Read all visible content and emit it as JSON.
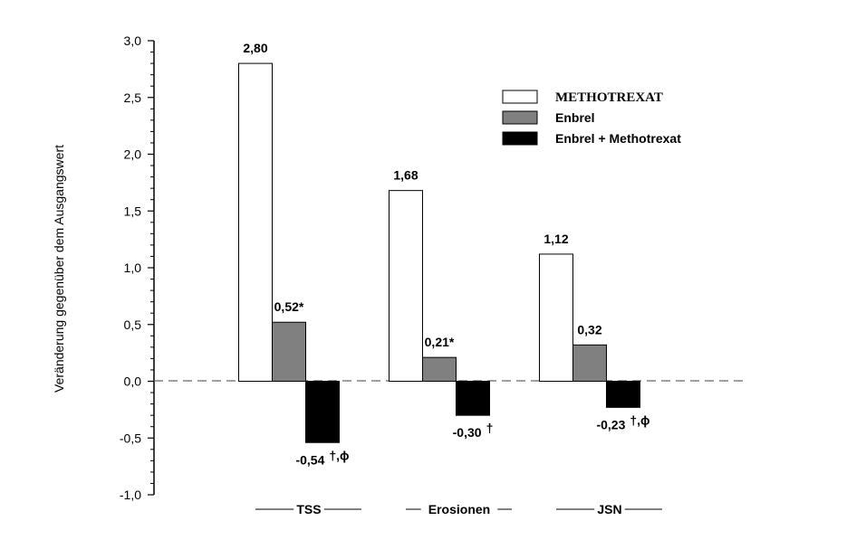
{
  "chart_data": {
    "type": "bar",
    "ylabel": "Veränderung gegenüber dem Ausgangswert",
    "ylim": [
      -1.0,
      3.0
    ],
    "ytick_step": 0.5,
    "ytick_labels": [
      "-1,0",
      "-0,5",
      "0,0",
      "0,5",
      "1,0",
      "1,5",
      "2,0",
      "2,5",
      "3,0"
    ],
    "categories": [
      "TSS",
      "Erosionen",
      "JSN"
    ],
    "series": [
      {
        "name": "METHOTREXAT",
        "color": "#ffffff",
        "values": [
          2.8,
          1.68,
          1.12
        ],
        "labels": [
          "2,80",
          "1,68",
          "1,12"
        ],
        "annotations": [
          "",
          "",
          ""
        ]
      },
      {
        "name": "Enbrel",
        "color": "#808080",
        "values": [
          0.52,
          0.21,
          0.32
        ],
        "labels": [
          "0,52*",
          "0,21*",
          "0,32"
        ],
        "annotations": [
          "",
          "",
          ""
        ]
      },
      {
        "name": "Enbrel + Methotrexat",
        "color": "#000000",
        "values": [
          -0.54,
          -0.3,
          -0.23
        ],
        "labels": [
          "-0,54",
          "-0,30",
          "-0,23"
        ],
        "annotations": [
          "†,ϕ",
          "†",
          "†,ϕ"
        ]
      }
    ],
    "zero_line": "dashed",
    "grid": false,
    "legend": "top-right"
  }
}
